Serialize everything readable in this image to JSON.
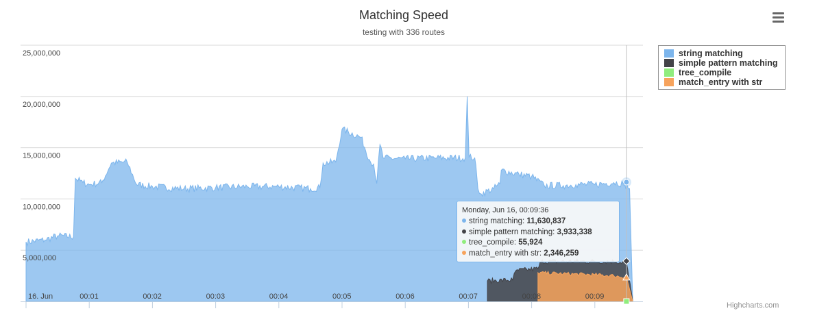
{
  "chart_data": {
    "type": "area",
    "title": "Matching Speed",
    "subtitle": "testing with 336 routes",
    "y_ticks": [
      "25,000,000",
      "20,000,000",
      "15,000,000",
      "10,000,000",
      "5,000,000"
    ],
    "y_tick_values": [
      25000000,
      20000000,
      15000000,
      10000000,
      5000000
    ],
    "ylim": [
      0,
      25000000
    ],
    "x_ticks": [
      "16. Jun",
      "00:01",
      "00:02",
      "00:03",
      "00:04",
      "00:05",
      "00:06",
      "00:07",
      "00:08",
      "00:09"
    ],
    "x_tick_minutes": [
      0,
      1,
      2,
      3,
      4,
      5,
      6,
      7,
      8,
      9
    ],
    "xlim_minutes": [
      0,
      9.7
    ],
    "grid": true,
    "legend_placement": "top-right",
    "series": [
      {
        "name": "string matching",
        "color": "#7cb5ec",
        "points": [
          [
            0,
            5.8
          ],
          [
            0.3,
            6.0
          ],
          [
            0.5,
            6.4
          ],
          [
            0.75,
            6.3
          ],
          [
            0.78,
            12.0
          ],
          [
            0.9,
            11.6
          ],
          [
            1.0,
            11.4
          ],
          [
            1.2,
            11.6
          ],
          [
            1.35,
            13.5
          ],
          [
            1.6,
            13.6
          ],
          [
            1.75,
            11.4
          ],
          [
            2.0,
            11.2
          ],
          [
            2.5,
            11.0
          ],
          [
            3.0,
            11.1
          ],
          [
            3.5,
            11.2
          ],
          [
            4.0,
            11.2
          ],
          [
            4.5,
            11.0
          ],
          [
            4.65,
            11.1
          ],
          [
            4.7,
            13.5
          ],
          [
            4.9,
            13.6
          ],
          [
            5.0,
            16.8
          ],
          [
            5.3,
            16.0
          ],
          [
            5.45,
            13.6
          ],
          [
            5.5,
            13.4
          ],
          [
            5.55,
            11.5
          ],
          [
            5.6,
            15.3
          ],
          [
            5.65,
            14.0
          ],
          [
            6.0,
            13.9
          ],
          [
            6.5,
            14.0
          ],
          [
            6.95,
            14.0
          ],
          [
            6.98,
            20.0
          ],
          [
            7.01,
            14.1
          ],
          [
            7.1,
            14.0
          ],
          [
            7.15,
            11.0
          ],
          [
            7.2,
            10.5
          ],
          [
            7.4,
            11.0
          ],
          [
            7.5,
            11.5
          ],
          [
            7.52,
            12.8
          ],
          [
            7.8,
            12.4
          ],
          [
            8.0,
            12.2
          ],
          [
            8.2,
            11.3
          ],
          [
            8.5,
            11.3
          ],
          [
            8.7,
            11.4
          ],
          [
            9.0,
            11.4
          ],
          [
            9.3,
            11.6
          ],
          [
            9.45,
            11.5
          ],
          [
            9.55,
            11.0
          ],
          [
            9.6,
            0
          ]
        ]
      },
      {
        "name": "simple pattern matching",
        "color": "#434348",
        "points": [
          [
            7.3,
            0
          ],
          [
            7.3,
            2.0
          ],
          [
            7.7,
            2.1
          ],
          [
            7.75,
            3.0
          ],
          [
            8.1,
            3.2
          ],
          [
            8.15,
            3.9
          ],
          [
            9.0,
            3.9
          ],
          [
            9.3,
            3.9
          ],
          [
            9.5,
            3.8
          ],
          [
            9.6,
            0
          ]
        ]
      },
      {
        "name": "tree_compile",
        "color": "#90ed7d",
        "points": [
          [
            9.5,
            0.056
          ]
        ]
      },
      {
        "name": "match_entry with str",
        "color": "#f7a35c",
        "points": [
          [
            8.1,
            0
          ],
          [
            8.1,
            2.8
          ],
          [
            8.5,
            2.7
          ],
          [
            9.0,
            2.6
          ],
          [
            9.3,
            2.5
          ],
          [
            9.5,
            2.35
          ],
          [
            9.6,
            0
          ]
        ]
      }
    ]
  },
  "tooltip": {
    "header": "Monday, Jun 16, 00:09:36",
    "rows": [
      {
        "label": "string matching: ",
        "value": "11,630,837",
        "color": "#7cb5ec"
      },
      {
        "label": "simple pattern matching: ",
        "value": "3,933,338",
        "color": "#434348"
      },
      {
        "label": "tree_compile: ",
        "value": "55,924",
        "color": "#90ed7d"
      },
      {
        "label": "match_entry with str: ",
        "value": "2,346,259",
        "color": "#f7a35c"
      }
    ]
  },
  "credits": "Highcharts.com",
  "menu_icon": "hamburger-menu-icon"
}
